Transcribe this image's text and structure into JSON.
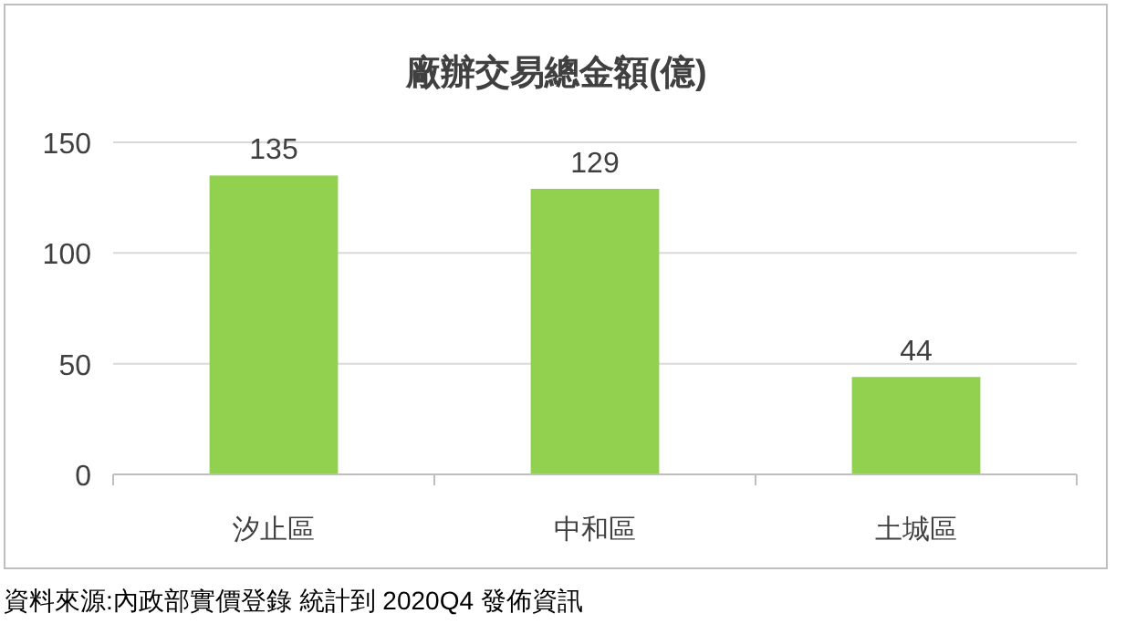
{
  "chart_data": {
    "type": "bar",
    "title": "廠辦交易總金額(億)",
    "categories": [
      "汐止區",
      "中和區",
      "土城區"
    ],
    "values": [
      135,
      129,
      44
    ],
    "color": "#92d050",
    "ylim": [
      0,
      150
    ],
    "yticks": [
      0,
      50,
      100,
      150
    ],
    "grid": "y",
    "data_labels": true,
    "annotations": [
      "資料來源:內政部實價登錄 統計到 2020Q4 發佈資訊"
    ]
  }
}
